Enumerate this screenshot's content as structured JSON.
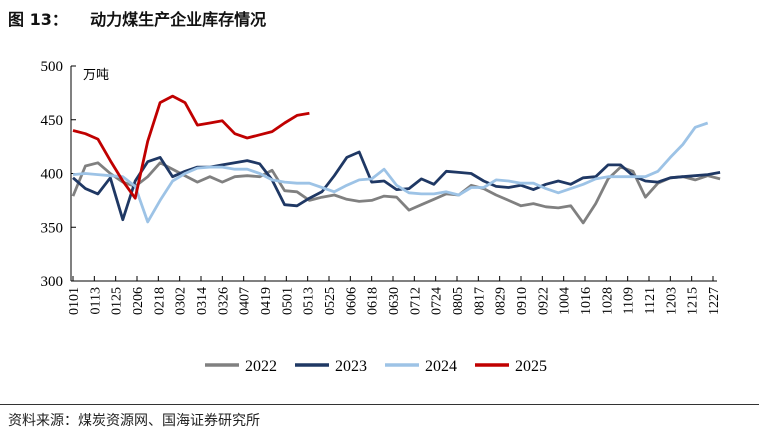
{
  "chart_data": {
    "type": "line",
    "title": "图 13：    动力煤生产企业库存情况",
    "ylabel": "万吨",
    "xlabel": "",
    "ylim": [
      300,
      500
    ],
    "yticks": [
      300,
      350,
      400,
      450,
      500
    ],
    "x_tick_labels": [
      "0101",
      "0113",
      "0125",
      "0206",
      "0218",
      "0302",
      "0314",
      "0326",
      "0407",
      "0419",
      "0501",
      "0513",
      "0525",
      "0606",
      "0618",
      "0630",
      "0712",
      "0724",
      "0805",
      "0817",
      "0829",
      "0910",
      "0922",
      "1004",
      "1016",
      "1028",
      "1109",
      "1121",
      "1203",
      "1215",
      "1227"
    ],
    "x_note": "series values are weekly observations starting 0101",
    "grid": false,
    "legend_position": "bottom",
    "series": [
      {
        "name": "2022",
        "color": "#808080",
        "values": [
          379,
          407,
          410,
          400,
          392,
          388,
          397,
          410,
          404,
          398,
          392,
          397,
          392,
          397,
          398,
          397,
          403,
          384,
          383,
          375,
          378,
          380,
          376,
          374,
          375,
          379,
          378,
          366,
          371,
          376,
          381,
          380,
          389,
          386,
          380,
          375,
          370,
          372,
          369,
          368,
          370,
          354,
          372,
          395,
          406,
          402,
          378,
          391,
          396,
          397,
          394,
          398,
          395
        ]
      },
      {
        "name": "2023",
        "color": "#1F3864",
        "values": [
          396,
          386,
          381,
          396,
          357,
          393,
          411,
          415,
          397,
          402,
          406,
          406,
          408,
          410,
          412,
          409,
          394,
          371,
          370,
          377,
          383,
          398,
          415,
          420,
          392,
          393,
          385,
          386,
          395,
          390,
          402,
          401,
          400,
          393,
          388,
          387,
          389,
          385,
          390,
          393,
          390,
          396,
          397,
          408,
          408,
          398,
          393,
          392,
          396,
          397,
          398,
          399,
          401
        ]
      },
      {
        "name": "2024",
        "color": "#9DC3E6",
        "values": [
          399,
          400,
          399,
          398,
          397,
          388,
          355,
          375,
          393,
          400,
          405,
          406,
          406,
          404,
          404,
          400,
          394,
          392,
          391,
          391,
          387,
          383,
          389,
          394,
          395,
          404,
          389,
          382,
          381,
          381,
          383,
          380,
          387,
          387,
          394,
          393,
          391,
          391,
          386,
          382,
          386,
          390,
          395,
          397,
          397,
          397,
          397,
          402,
          415,
          427,
          443,
          447
        ]
      },
      {
        "name": "2025",
        "color": "#C00000",
        "values": [
          440,
          437,
          432,
          412,
          393,
          377,
          430,
          466,
          472,
          466,
          445,
          447,
          449,
          437,
          433,
          436,
          439,
          447,
          454,
          456
        ]
      }
    ]
  },
  "source": "资料来源：煤炭资源网、国海证券研究所"
}
